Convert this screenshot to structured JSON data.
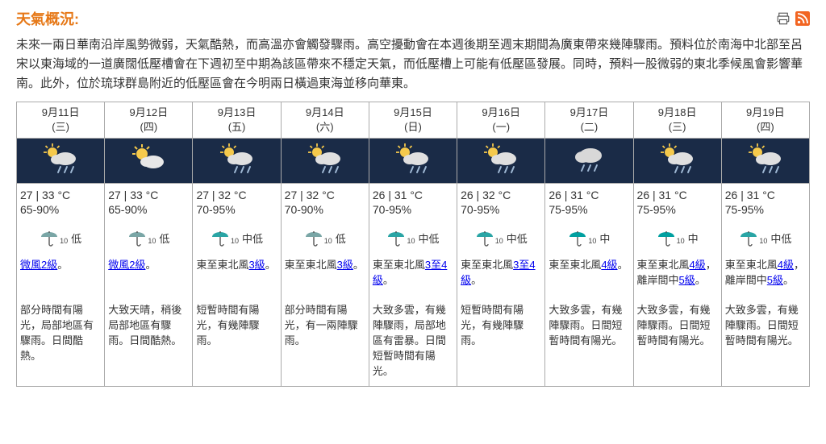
{
  "title": "天氣概況:",
  "overview": "未來一兩日華南沿岸風勢微弱，天氣酷熱，而高溫亦會觸發驟雨。高空擾動會在本週後期至週末期間為廣東帶來幾陣驟雨。預料位於南海中北部至呂宋以東海域的一道廣闊低壓槽會在下週初至中期為該區帶來不穩定天氣，而低壓槽上可能有低壓區發展。同時，預料一股微弱的東北季候風會影響華南。此外，位於琉球群島附近的低壓區會在今明兩日橫過東海並移向華東。",
  "colors": {
    "title": "#e67817",
    "night_bg": "#1a2b47",
    "border": "#aaaaaa",
    "link": "#0000ee",
    "rss": "#f26522"
  },
  "days": [
    {
      "date": "9月11日",
      "weekday": "(三)",
      "icon": "sun-cloud-rain",
      "temp": "27 | 33 °C",
      "humidity": "65-90%",
      "rain_icon_color": "#7aa6a6",
      "rain_sub": "10",
      "rain_label": "低",
      "wind_pre": "",
      "wind_link": "微風2級",
      "wind_post": "。",
      "wind_link2": "",
      "wind_post2": "",
      "desc": "部分時間有陽光，局部地區有驟雨。日間酷熱。"
    },
    {
      "date": "9月12日",
      "weekday": "(四)",
      "icon": "sun-cloud",
      "temp": "27 | 33 °C",
      "humidity": "65-90%",
      "rain_icon_color": "#7aa6a6",
      "rain_sub": "10",
      "rain_label": "低",
      "wind_pre": "",
      "wind_link": "微風2級",
      "wind_post": "。",
      "wind_link2": "",
      "wind_post2": "",
      "desc": "大致天晴，稍後局部地區有驟雨。日間酷熱。"
    },
    {
      "date": "9月13日",
      "weekday": "(五)",
      "icon": "sun-cloud-rain",
      "temp": "27 | 32 °C",
      "humidity": "70-95%",
      "rain_icon_color": "#2aa5a5",
      "rain_sub": "10",
      "rain_label": "中低",
      "wind_pre": "東至東北風",
      "wind_link": "3級",
      "wind_post": "。",
      "wind_link2": "",
      "wind_post2": "",
      "desc": "短暫時間有陽光，有幾陣驟雨。"
    },
    {
      "date": "9月14日",
      "weekday": "(六)",
      "icon": "sun-cloud-rain",
      "temp": "27 | 32 °C",
      "humidity": "70-90%",
      "rain_icon_color": "#7aa6a6",
      "rain_sub": "10",
      "rain_label": "低",
      "wind_pre": "東至東北風",
      "wind_link": "3級",
      "wind_post": "。",
      "wind_link2": "",
      "wind_post2": "",
      "desc": "部分時間有陽光，有一兩陣驟雨。"
    },
    {
      "date": "9月15日",
      "weekday": "(日)",
      "icon": "sun-cloud-rain",
      "temp": "26 | 31 °C",
      "humidity": "70-95%",
      "rain_icon_color": "#2aa5a5",
      "rain_sub": "10",
      "rain_label": "中低",
      "wind_pre": "東至東北風",
      "wind_link": "3至4級",
      "wind_post": "。",
      "wind_link2": "",
      "wind_post2": "",
      "desc": "大致多雲，有幾陣驟雨，局部地區有雷暴。日間短暫時間有陽光。"
    },
    {
      "date": "9月16日",
      "weekday": "(一)",
      "icon": "sun-cloud-rain",
      "temp": "26 | 32 °C",
      "humidity": "70-95%",
      "rain_icon_color": "#2aa5a5",
      "rain_sub": "10",
      "rain_label": "中低",
      "wind_pre": "東至東北風",
      "wind_link": "3至4級",
      "wind_post": "。",
      "wind_link2": "",
      "wind_post2": "",
      "desc": "短暫時間有陽光，有幾陣驟雨。"
    },
    {
      "date": "9月17日",
      "weekday": "(二)",
      "icon": "cloud-rain",
      "temp": "26 | 31 °C",
      "humidity": "75-95%",
      "rain_icon_color": "#00a0a0",
      "rain_sub": "10",
      "rain_label": "中",
      "wind_pre": "東至東北風",
      "wind_link": "4級",
      "wind_post": "。",
      "wind_link2": "",
      "wind_post2": "",
      "desc": "大致多雲，有幾陣驟雨。日間短暫時間有陽光。"
    },
    {
      "date": "9月18日",
      "weekday": "(三)",
      "icon": "sun-cloud-rain",
      "temp": "26 | 31 °C",
      "humidity": "75-95%",
      "rain_icon_color": "#00a0a0",
      "rain_sub": "10",
      "rain_label": "中",
      "wind_pre": "東至東北風",
      "wind_link": "4級",
      "wind_post": "離岸間中",
      "wind_link2": "5級",
      "wind_post2": "。",
      "desc": "大致多雲，有幾陣驟雨。日間短暫時間有陽光。"
    },
    {
      "date": "9月19日",
      "weekday": "(四)",
      "icon": "sun-cloud-rain",
      "temp": "26 | 31 °C",
      "humidity": "75-95%",
      "rain_icon_color": "#2aa5a5",
      "rain_sub": "10",
      "rain_label": "中低",
      "wind_pre": "東至東北風",
      "wind_link": "4級",
      "wind_post": "離岸間中",
      "wind_link2": "5級",
      "wind_post2": "。",
      "desc": "大致多雲，有幾陣驟雨。日間短暫時間有陽光。"
    }
  ]
}
